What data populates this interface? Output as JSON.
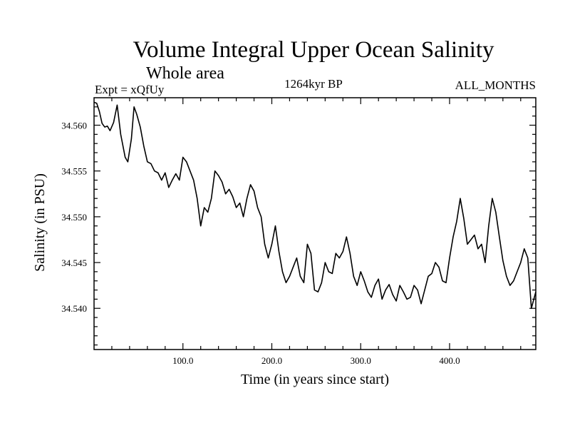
{
  "chart_data": {
    "type": "line",
    "title": "Volume Integral Upper Ocean Salinity",
    "subtitle": "Whole area",
    "annotations": {
      "left": "Expt = xQfUy",
      "center": "1264kyr BP",
      "right": "ALL_MONTHS"
    },
    "xlabel": "Time (in years since start)",
    "ylabel": "Salinity (in PSU)",
    "xlim": [
      0,
      497
    ],
    "ylim": [
      34.5355,
      34.563
    ],
    "xticks": [
      100,
      200,
      300,
      400
    ],
    "xtick_labels": [
      "100.0",
      "200.0",
      "300.0",
      "400.0"
    ],
    "yticks": [
      34.54,
      34.545,
      34.55,
      34.555,
      34.56
    ],
    "ytick_labels": [
      "34.540",
      "34.545",
      "34.550",
      "34.555",
      "34.560"
    ],
    "grid": false,
    "line_color": "#000000",
    "series": [
      {
        "name": "Salinity",
        "x": [
          0,
          3,
          6,
          9,
          12,
          15,
          18,
          22,
          26,
          30,
          35,
          38,
          42,
          45,
          48,
          52,
          56,
          60,
          64,
          68,
          72,
          76,
          80,
          84,
          88,
          92,
          96,
          100,
          104,
          108,
          112,
          116,
          120,
          124,
          128,
          132,
          136,
          140,
          144,
          148,
          152,
          156,
          160,
          164,
          168,
          172,
          176,
          180,
          184,
          188,
          192,
          196,
          200,
          204,
          208,
          212,
          216,
          220,
          224,
          228,
          232,
          236,
          240,
          244,
          248,
          252,
          256,
          260,
          264,
          268,
          272,
          276,
          280,
          284,
          288,
          292,
          296,
          300,
          304,
          308,
          312,
          316,
          320,
          324,
          328,
          332,
          336,
          340,
          344,
          348,
          352,
          356,
          360,
          364,
          368,
          372,
          376,
          380,
          384,
          388,
          392,
          396,
          400,
          404,
          408,
          412,
          416,
          420,
          424,
          428,
          432,
          436,
          440,
          444,
          448,
          452,
          456,
          460,
          464,
          468,
          472,
          476,
          480,
          484,
          488,
          492,
          497
        ],
        "values": [
          34.5625,
          34.5624,
          34.5615,
          34.5602,
          34.5598,
          34.5599,
          34.5594,
          34.5603,
          34.5622,
          34.559,
          34.5565,
          34.556,
          34.5585,
          34.562,
          34.5612,
          34.5598,
          34.5577,
          34.556,
          34.5558,
          34.555,
          34.5548,
          34.554,
          34.5548,
          34.5532,
          34.554,
          34.5547,
          34.554,
          34.5565,
          34.556,
          34.555,
          34.554,
          34.552,
          34.549,
          34.551,
          34.5505,
          34.552,
          34.555,
          34.5545,
          34.5538,
          34.5525,
          34.553,
          34.5522,
          34.551,
          34.5515,
          34.55,
          34.552,
          34.5535,
          34.5528,
          34.551,
          34.55,
          34.547,
          34.5455,
          34.547,
          34.549,
          34.5462,
          34.544,
          34.5428,
          34.5435,
          34.5445,
          34.5455,
          34.5435,
          34.5428,
          34.547,
          34.546,
          34.542,
          34.5418,
          34.5428,
          34.545,
          34.544,
          34.5438,
          34.546,
          34.5455,
          34.5462,
          34.5478,
          34.546,
          34.5435,
          34.5425,
          34.544,
          34.543,
          34.5418,
          34.5412,
          34.5425,
          34.5432,
          34.541,
          34.542,
          34.5426,
          34.5415,
          34.5408,
          34.5425,
          34.5418,
          34.541,
          34.5412,
          34.5425,
          34.542,
          34.5405,
          34.542,
          34.5435,
          34.5438,
          34.545,
          34.5445,
          34.543,
          34.5428,
          34.5455,
          34.5478,
          34.5495,
          34.552,
          34.5498,
          34.547,
          34.5475,
          34.548,
          34.5465,
          34.547,
          34.545,
          34.549,
          34.552,
          34.5505,
          34.5478,
          34.5452,
          34.5435,
          34.5425,
          34.543,
          34.544,
          34.545,
          34.5465,
          34.5455,
          34.54,
          34.5418
        ]
      }
    ]
  }
}
